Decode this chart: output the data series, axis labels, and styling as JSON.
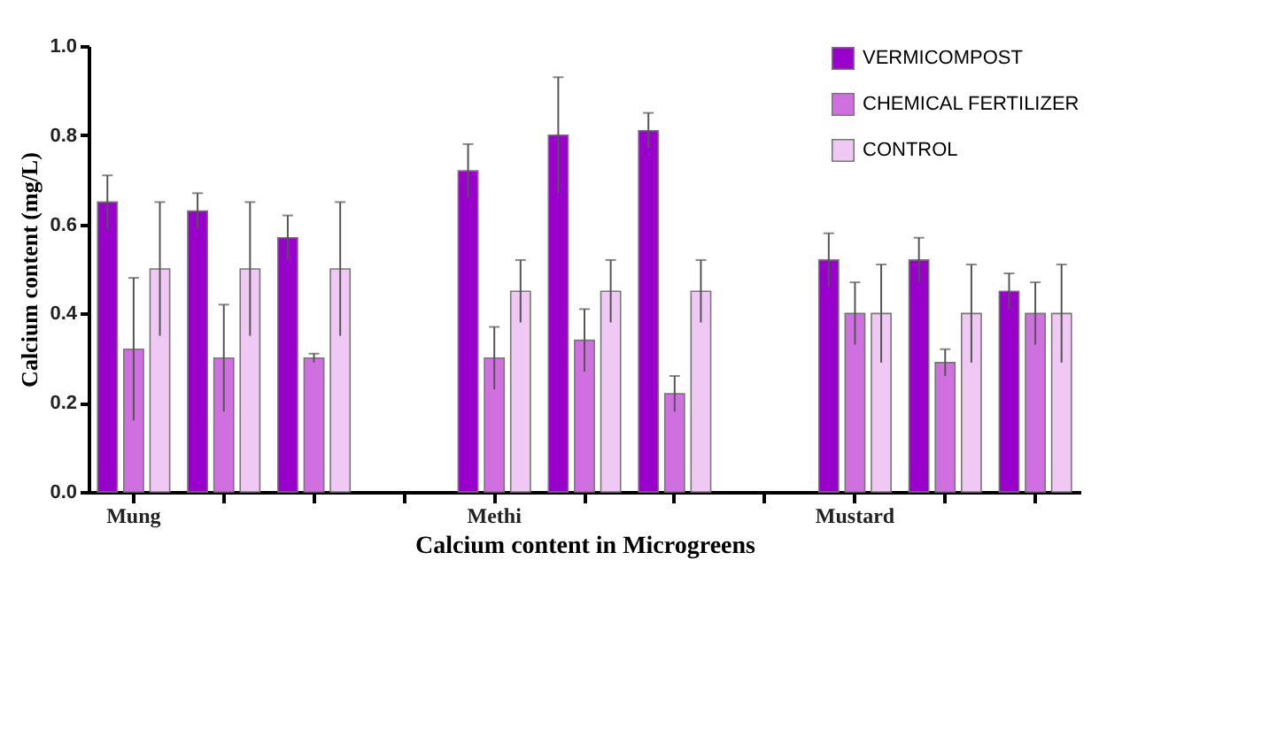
{
  "chart_data": {
    "type": "bar",
    "xlabel": "Calcium content in Microgreens",
    "ylabel": "Calcium content (mg/L)",
    "categories": [
      "Mung",
      null,
      null,
      null,
      "Methi",
      null,
      null,
      null,
      "Mustard",
      null,
      null
    ],
    "series": [
      {
        "name": "VERMICOMPOST",
        "color": "#9900cc",
        "values": [
          0.65,
          0.63,
          0.57,
          null,
          0.72,
          0.8,
          0.81,
          null,
          0.52,
          0.52,
          0.45
        ],
        "errors": [
          0.06,
          0.04,
          0.05,
          null,
          0.06,
          0.13,
          0.04,
          null,
          0.06,
          0.05,
          0.04
        ]
      },
      {
        "name": "CHEMICAL FERTILIZER",
        "color": "#d070e0",
        "values": [
          0.32,
          0.3,
          0.3,
          null,
          0.3,
          0.34,
          0.22,
          null,
          0.4,
          0.29,
          0.4
        ],
        "errors": [
          0.16,
          0.12,
          0.01,
          null,
          0.07,
          0.07,
          0.04,
          null,
          0.07,
          0.03,
          0.07
        ]
      },
      {
        "name": "CONTROL",
        "color": "#f0c8f4",
        "values": [
          0.5,
          0.5,
          0.5,
          null,
          0.45,
          0.45,
          0.45,
          null,
          0.4,
          0.4,
          0.4
        ],
        "errors": [
          0.15,
          0.15,
          0.15,
          null,
          0.07,
          0.07,
          0.07,
          null,
          0.11,
          0.11,
          0.11
        ]
      }
    ],
    "ylim": [
      0,
      1
    ],
    "yticks": [
      {
        "value": 0,
        "label": "0.0"
      },
      0.2,
      0.4,
      0.6,
      0.8,
      {
        "value": 1,
        "label": "1.0"
      }
    ],
    "grid": false,
    "legend": "top right"
  }
}
